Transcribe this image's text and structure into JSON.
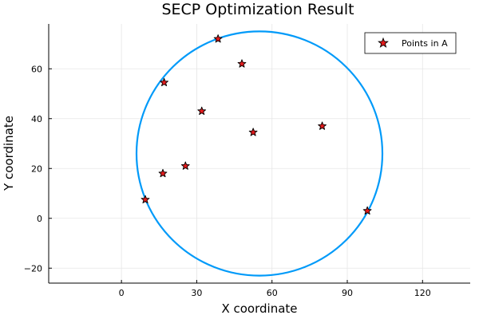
{
  "chart_data": {
    "type": "scatter",
    "title": "SECP Optimization Result",
    "xlabel": "X coordinate",
    "ylabel": "Y coordinate",
    "xlim": [
      -29,
      139
    ],
    "ylim": [
      -26,
      78
    ],
    "xticks": [
      0,
      30,
      60,
      90,
      120
    ],
    "yticks": [
      -20,
      0,
      20,
      40,
      60
    ],
    "grid": true,
    "legend_position": "top-right",
    "series": [
      {
        "name": "Points in A",
        "marker": "star",
        "color": "#e31a1c",
        "x": [
          38.5,
          48.0,
          17.0,
          32.0,
          52.5,
          80.0,
          25.5,
          16.5,
          9.5,
          98.0
        ],
        "y": [
          72.0,
          62.0,
          54.5,
          43.0,
          34.5,
          37.0,
          21.0,
          18.0,
          7.5,
          3.0
        ]
      }
    ],
    "circle": {
      "center_x": 55.0,
      "center_y": 26.0,
      "radius": 49.0,
      "color": "#009af9"
    }
  }
}
